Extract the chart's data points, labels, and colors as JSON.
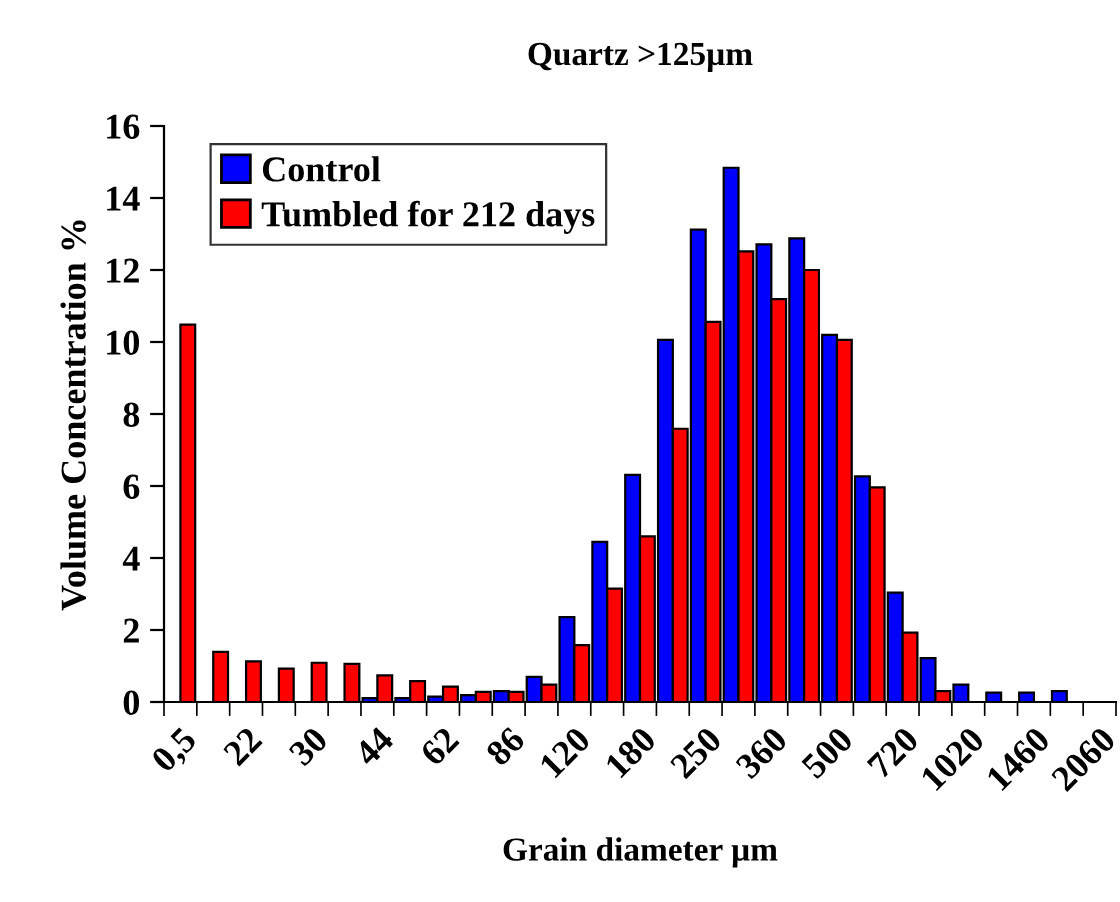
{
  "chart_data": {
    "type": "bar",
    "title": "Quartz >125µm",
    "xlabel": "Grain diameter µm",
    "ylabel": "Volume Concentration %",
    "categories": [
      "0,5",
      null,
      "22",
      null,
      "30",
      null,
      "44",
      null,
      "62",
      null,
      "86",
      null,
      "120",
      null,
      "180",
      null,
      "250",
      null,
      "360",
      null,
      "500",
      null,
      "720",
      null,
      "1020",
      null,
      "1460",
      null,
      "2060"
    ],
    "series": [
      {
        "name": "Control",
        "color": "#0000ff",
        "values": [
          0,
          0,
          0,
          0,
          0,
          0,
          0.11,
          0.11,
          0.15,
          0.19,
          0.3,
          0.7,
          2.36,
          4.45,
          6.31,
          10.06,
          13.12,
          14.84,
          12.71,
          12.88,
          10.2,
          6.27,
          3.04,
          1.22,
          0.48,
          0.26,
          0.26,
          0.3,
          null
        ]
      },
      {
        "name": "Tumbled for 212 days",
        "color": "#ff0000",
        "values": [
          10.48,
          1.39,
          1.13,
          0.93,
          1.09,
          1.06,
          0.74,
          0.58,
          0.43,
          0.28,
          0.28,
          0.48,
          1.58,
          3.15,
          4.6,
          7.59,
          10.56,
          12.52,
          11.19,
          12.0,
          10.06,
          5.96,
          1.93,
          0.3,
          0,
          0,
          0,
          0,
          0
        ]
      }
    ],
    "ylim": [
      0,
      16
    ],
    "yticks": [
      0,
      2,
      4,
      6,
      8,
      10,
      12,
      14,
      16
    ],
    "grid": false,
    "legend": "top left"
  }
}
